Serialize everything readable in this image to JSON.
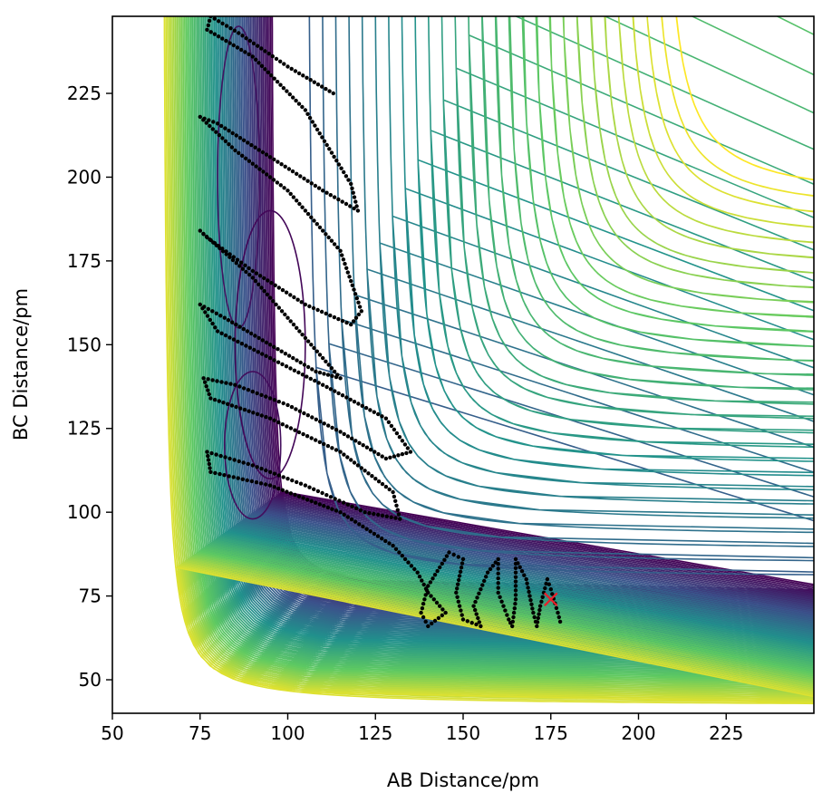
{
  "chart_data": {
    "type": "contour",
    "xlabel": "AB Distance/pm",
    "ylabel": "BC Distance/pm",
    "xlim": [
      50,
      250
    ],
    "ylim": [
      40,
      248
    ],
    "xticks": [
      50,
      75,
      100,
      125,
      150,
      175,
      200,
      225
    ],
    "yticks": [
      50,
      75,
      100,
      125,
      150,
      175,
      200,
      225
    ],
    "colormap": [
      "#440154",
      "#3b528b",
      "#21918c",
      "#5ec962",
      "#fde725"
    ],
    "grid": false,
    "contour_levels": 70,
    "surface": {
      "minimum": [
        250,
        74
      ],
      "wall_x_pm": 63,
      "wall_y_pm": 42,
      "valley_y_pm": 74
    },
    "trajectory_color": "#000000",
    "trajectory": [
      [
        113,
        225
      ],
      [
        100,
        233
      ],
      [
        86,
        243
      ],
      [
        78,
        248
      ],
      [
        77,
        244
      ],
      [
        90,
        236
      ],
      [
        105,
        220
      ],
      [
        118,
        198
      ],
      [
        120,
        190
      ],
      [
        110,
        196
      ],
      [
        95,
        206
      ],
      [
        80,
        216
      ],
      [
        75,
        218
      ],
      [
        85,
        208
      ],
      [
        100,
        196
      ],
      [
        115,
        178
      ],
      [
        121,
        160
      ],
      [
        118,
        156
      ],
      [
        105,
        162
      ],
      [
        90,
        172
      ],
      [
        77,
        182
      ],
      [
        75,
        184
      ],
      [
        90,
        170
      ],
      [
        105,
        152
      ],
      [
        115,
        140
      ],
      [
        108,
        142
      ],
      [
        95,
        150
      ],
      [
        82,
        158
      ],
      [
        75,
        162
      ],
      [
        80,
        154
      ],
      [
        95,
        146
      ],
      [
        110,
        138
      ],
      [
        128,
        128
      ],
      [
        135,
        118
      ],
      [
        128,
        116
      ],
      [
        115,
        124
      ],
      [
        100,
        132
      ],
      [
        85,
        138
      ],
      [
        76,
        140
      ],
      [
        78,
        134
      ],
      [
        95,
        128
      ],
      [
        115,
        118
      ],
      [
        130,
        106
      ],
      [
        132,
        98
      ],
      [
        122,
        100
      ],
      [
        105,
        108
      ],
      [
        90,
        114
      ],
      [
        77,
        118
      ],
      [
        78,
        112
      ],
      [
        95,
        108
      ],
      [
        115,
        100
      ],
      [
        130,
        90
      ],
      [
        137,
        82
      ],
      [
        140,
        76
      ],
      [
        145,
        70
      ],
      [
        140,
        66
      ],
      [
        138,
        70
      ],
      [
        140,
        78
      ],
      [
        146,
        88
      ],
      [
        150,
        86
      ],
      [
        148,
        76
      ],
      [
        150,
        68
      ],
      [
        155,
        66
      ],
      [
        153,
        72
      ],
      [
        157,
        82
      ],
      [
        160,
        86
      ],
      [
        160,
        76
      ],
      [
        163,
        68
      ],
      [
        164,
        66
      ],
      [
        165,
        74
      ],
      [
        165,
        86
      ],
      [
        168,
        80
      ],
      [
        170,
        70
      ],
      [
        171,
        66
      ],
      [
        172,
        72
      ],
      [
        174,
        80
      ],
      [
        175,
        77
      ],
      [
        177,
        70
      ],
      [
        178,
        66
      ]
    ],
    "marker": {
      "x": 175,
      "y": 74,
      "symbol": "x",
      "color": "#e8202a"
    }
  }
}
